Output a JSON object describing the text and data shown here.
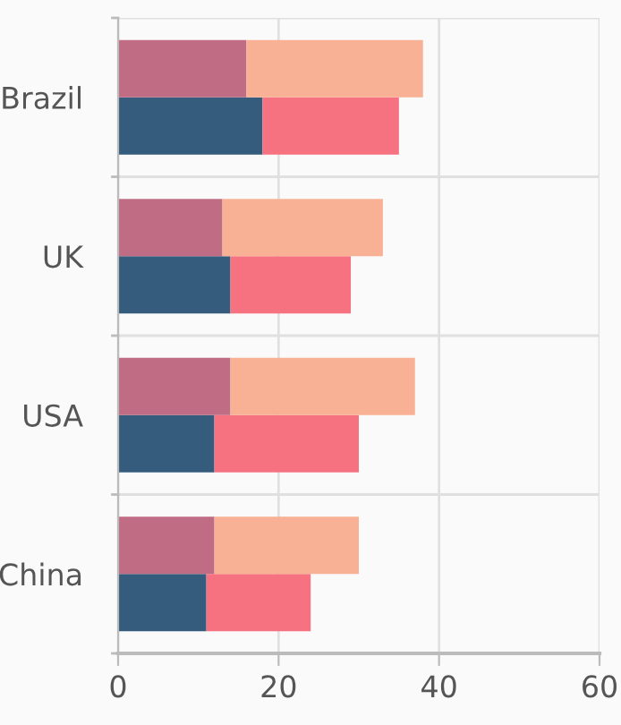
{
  "chart_data": {
    "type": "bar",
    "orientation": "horizontal",
    "categories": [
      "Brazil",
      "UK",
      "USA",
      "China"
    ],
    "series": [
      {
        "color": "#355c7d",
        "values": [
          18,
          14,
          12,
          11
        ],
        "base": [
          0,
          0,
          0,
          0
        ]
      },
      {
        "color": "#f67280",
        "values": [
          17,
          15,
          18,
          13
        ],
        "base": [
          18,
          14,
          12,
          11
        ]
      },
      {
        "color": "#c06c84",
        "values": [
          16,
          13,
          14,
          12
        ],
        "base": [
          0,
          0,
          0,
          0
        ]
      },
      {
        "color": "#f8b195",
        "values": [
          22,
          20,
          23,
          18
        ],
        "base": [
          16,
          13,
          14,
          12
        ]
      }
    ],
    "xlim": [
      0,
      60
    ],
    "xticks": [
      0,
      20,
      40,
      60
    ],
    "grid": true
  }
}
